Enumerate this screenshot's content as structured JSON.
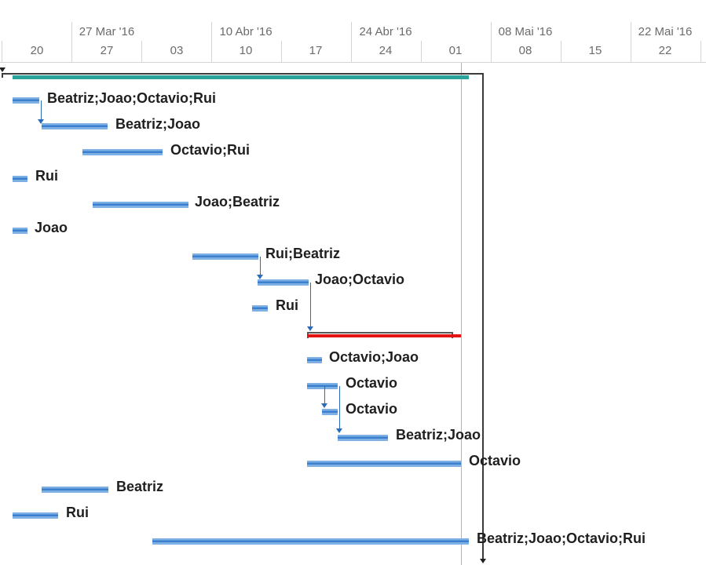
{
  "timescale": {
    "top_tier": [
      "27 Mar '16",
      "10 Abr '16",
      "24 Abr '16",
      "08 Mai '16",
      "22 Mai '16"
    ],
    "bottom_tier": [
      "20",
      "27",
      "03",
      "10",
      "17",
      "24",
      "01",
      "08",
      "15",
      "22"
    ]
  },
  "tasks": [
    {
      "label": "Beatriz;Joao;Octavio;Rui"
    },
    {
      "label": "Beatriz;Joao"
    },
    {
      "label": "Octavio;Rui"
    },
    {
      "label": "Rui"
    },
    {
      "label": "Joao;Beatriz"
    },
    {
      "label": "Joao"
    },
    {
      "label": "Rui;Beatriz"
    },
    {
      "label": "Joao;Octavio"
    },
    {
      "label": "Rui"
    },
    {
      "label": "Octavio;Joao"
    },
    {
      "label": "Octavio"
    },
    {
      "label": "Octavio"
    },
    {
      "label": "Beatriz;Joao"
    },
    {
      "label": "Octavio"
    },
    {
      "label": "Beatriz"
    },
    {
      "label": "Rui"
    },
    {
      "label": "Beatriz;Joao;Octavio;Rui"
    }
  ],
  "colors": {
    "task_bar": "#3b7fcf",
    "summary_bar": "#2aa39a",
    "critical_bar": "#e31414",
    "status_line": "#8fd18f"
  }
}
